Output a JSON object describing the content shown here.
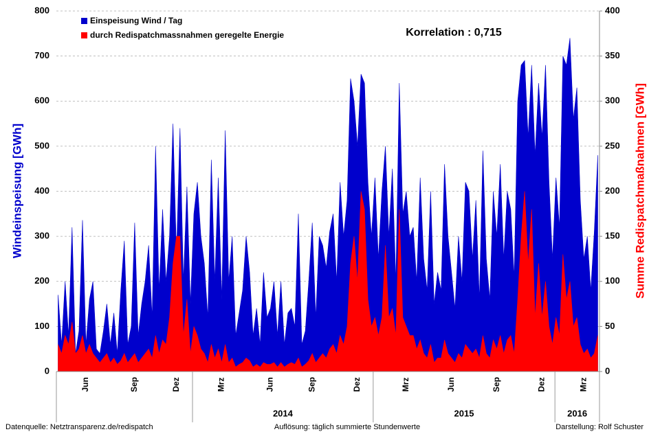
{
  "chart_data": {
    "type": "area",
    "x_label": "Windeinspeisung  [GWh]",
    "y2_label": "Summe Redispatchmaßnahmen  [GWh]",
    "annotation": "Korrelation : 0,715",
    "years": [
      "2014",
      "2015",
      "2016"
    ],
    "footer": [
      "Datenquelle: Netztransparenz.de/redispatch",
      "Auflösung: täglich summierte Stundenwerte",
      "Darstellung: Rolf Schuster"
    ],
    "categories": [
      null,
      null,
      null,
      null,
      null,
      null,
      null,
      null,
      "Jun",
      null,
      null,
      null,
      null,
      null,
      null,
      null,
      null,
      null,
      null,
      null,
      null,
      null,
      "Sep",
      null,
      null,
      null,
      null,
      null,
      null,
      null,
      null,
      null,
      null,
      null,
      "Dez",
      null,
      null,
      null,
      null,
      null,
      null,
      null,
      null,
      null,
      null,
      null,
      null,
      "Mrz",
      null,
      null,
      null,
      null,
      null,
      null,
      null,
      null,
      null,
      null,
      null,
      null,
      null,
      "Jun",
      null,
      null,
      null,
      null,
      null,
      null,
      null,
      null,
      null,
      null,
      null,
      "Sep",
      null,
      null,
      null,
      null,
      null,
      null,
      null,
      null,
      null,
      null,
      null,
      null,
      "Dez",
      null,
      null,
      null,
      null,
      null,
      null,
      null,
      null,
      null,
      null,
      null,
      null,
      null,
      "Mrz",
      null,
      null,
      null,
      null,
      null,
      null,
      null,
      null,
      null,
      null,
      null,
      null,
      "Jun",
      null,
      null,
      null,
      null,
      null,
      null,
      null,
      null,
      null,
      null,
      null,
      null,
      "Sep",
      null,
      null,
      null,
      null,
      null,
      null,
      null,
      null,
      null,
      null,
      null,
      null,
      "Dez",
      null,
      null,
      null,
      null,
      null,
      null,
      null,
      null,
      null,
      null,
      null,
      "Mrz",
      null,
      null,
      null,
      null
    ],
    "series": [
      {
        "name": "Einspeisung Wind / Tag",
        "color": "#0000cc",
        "axis": "y",
        "values": [
          170,
          60,
          200,
          80,
          320,
          40,
          90,
          336,
          60,
          160,
          200,
          50,
          40,
          90,
          150,
          60,
          130,
          40,
          180,
          290,
          60,
          100,
          330,
          80,
          150,
          200,
          280,
          120,
          500,
          180,
          360,
          200,
          300,
          550,
          260,
          540,
          200,
          410,
          150,
          350,
          420,
          300,
          240,
          120,
          470,
          200,
          430,
          160,
          535,
          200,
          300,
          80,
          130,
          180,
          300,
          220,
          80,
          140,
          60,
          220,
          120,
          140,
          200,
          80,
          200,
          60,
          130,
          140,
          100,
          350,
          60,
          90,
          200,
          330,
          120,
          300,
          280,
          230,
          310,
          350,
          200,
          420,
          300,
          380,
          650,
          600,
          500,
          660,
          640,
          420,
          300,
          430,
          250,
          400,
          500,
          300,
          450,
          200,
          640,
          350,
          400,
          300,
          320,
          200,
          430,
          250,
          180,
          400,
          150,
          220,
          180,
          460,
          300,
          220,
          140,
          300,
          200,
          420,
          400,
          250,
          380,
          160,
          490,
          250,
          160,
          400,
          300,
          460,
          250,
          400,
          360,
          210,
          600,
          680,
          690,
          520,
          680,
          480,
          640,
          520,
          680,
          420,
          250,
          430,
          320,
          700,
          680,
          740,
          560,
          630,
          380,
          250,
          300,
          180,
          310,
          480
        ]
      },
      {
        "name": "durch Redispatchmassnahmen geregelte Energie",
        "color": "#ff0000",
        "axis": "y2",
        "values": [
          30,
          20,
          40,
          30,
          55,
          20,
          25,
          40,
          20,
          30,
          20,
          15,
          10,
          15,
          20,
          10,
          15,
          8,
          12,
          20,
          10,
          15,
          20,
          10,
          15,
          20,
          25,
          15,
          40,
          20,
          35,
          30,
          60,
          120,
          150,
          150,
          40,
          80,
          20,
          50,
          40,
          25,
          20,
          10,
          30,
          15,
          25,
          10,
          30,
          10,
          15,
          5,
          8,
          10,
          15,
          12,
          5,
          8,
          5,
          10,
          8,
          8,
          10,
          5,
          10,
          5,
          8,
          10,
          8,
          15,
          5,
          8,
          12,
          20,
          10,
          15,
          20,
          15,
          25,
          30,
          20,
          40,
          30,
          50,
          120,
          150,
          100,
          200,
          180,
          80,
          50,
          60,
          40,
          60,
          140,
          60,
          70,
          40,
          180,
          60,
          50,
          40,
          40,
          25,
          35,
          20,
          15,
          30,
          10,
          15,
          15,
          35,
          20,
          15,
          10,
          20,
          15,
          30,
          25,
          20,
          25,
          15,
          40,
          20,
          15,
          35,
          25,
          40,
          20,
          35,
          40,
          20,
          80,
          150,
          200,
          120,
          180,
          60,
          120,
          60,
          100,
          50,
          30,
          60,
          40,
          130,
          80,
          100,
          50,
          60,
          30,
          20,
          25,
          15,
          20,
          40
        ]
      }
    ],
    "ylim": [
      0,
      800
    ],
    "yticks": [
      0,
      100,
      200,
      300,
      400,
      500,
      600,
      700,
      800
    ],
    "y2lim": [
      0,
      400
    ],
    "y2ticks": [
      0,
      50,
      100,
      150,
      200,
      250,
      300,
      350,
      400
    ],
    "grid": true,
    "legend": "upper left"
  }
}
